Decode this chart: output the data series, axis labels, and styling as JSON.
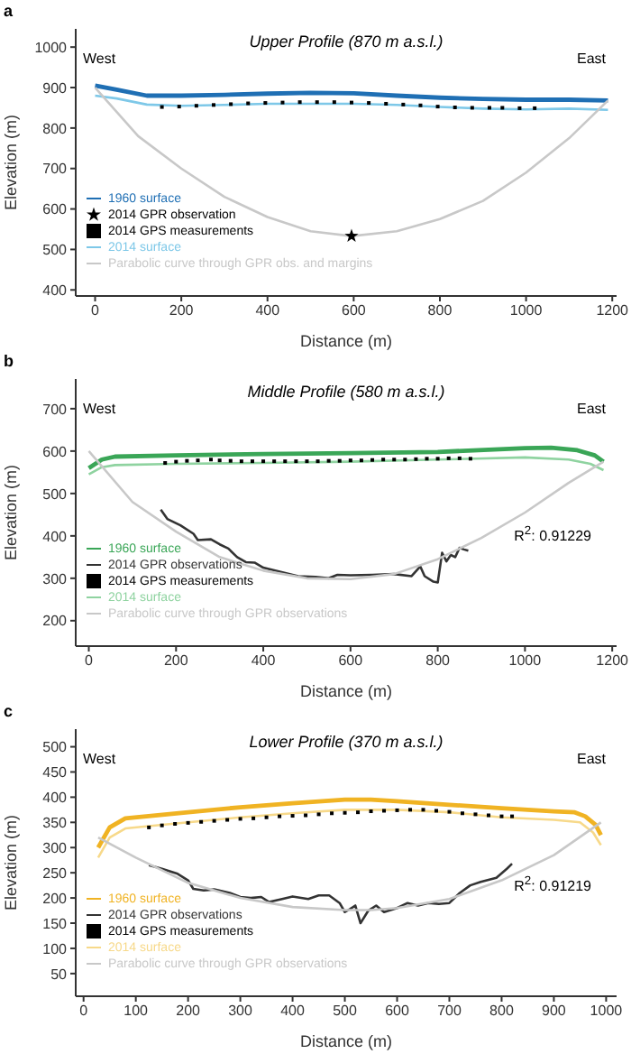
{
  "chart_data": [
    {
      "type": "line",
      "title": "Upper Profile (870 m a.s.l.)",
      "xlabel": "Distance (m)",
      "ylabel": "Elevation (m)",
      "annotations": [
        "a",
        "West",
        "East"
      ],
      "xlim": [
        -45,
        1210
      ],
      "ylim": [
        385,
        1045
      ],
      "xticks": [
        0,
        200,
        400,
        600,
        800,
        1000,
        1200
      ],
      "yticks": [
        400,
        500,
        600,
        700,
        800,
        900,
        1000
      ],
      "legend": "bottom left",
      "series": [
        {
          "name": "1960 surface",
          "type": "line",
          "color": "#1f6fb4",
          "marker": "none",
          "x": [
            0,
            50,
            120,
            200,
            300,
            400,
            500,
            600,
            700,
            800,
            900,
            1000,
            1100,
            1190
          ],
          "values": [
            905,
            895,
            880,
            880,
            882,
            885,
            887,
            886,
            880,
            875,
            872,
            870,
            870,
            868
          ]
        },
        {
          "name": "2014 surface",
          "type": "line",
          "color": "#7ec8e8",
          "marker": "none",
          "x": [
            0,
            50,
            120,
            200,
            300,
            400,
            500,
            600,
            700,
            800,
            900,
            1000,
            1100,
            1190
          ],
          "values": [
            880,
            873,
            858,
            855,
            857,
            860,
            860,
            860,
            857,
            852,
            848,
            846,
            848,
            845
          ]
        },
        {
          "name": "2014 GPS measurements",
          "type": "scatter",
          "color": "#000000",
          "marker": "square",
          "x": [
            155,
            195,
            235,
            275,
            315,
            355,
            395,
            435,
            475,
            515,
            555,
            595,
            635,
            675,
            715,
            755,
            795,
            835,
            875,
            915,
            945,
            985,
            1020
          ],
          "values": [
            852,
            853,
            855,
            857,
            859,
            861,
            862,
            863,
            864,
            864,
            864,
            863,
            862,
            860,
            858,
            856,
            853,
            851,
            850,
            850,
            850,
            849,
            849
          ]
        },
        {
          "name": "2014 GPR observation",
          "type": "scatter",
          "color": "#000000",
          "marker": "star",
          "x": [
            595
          ],
          "values": [
            533
          ]
        },
        {
          "name": "Parabolic curve through GPR obs. and margins",
          "type": "line",
          "color": "#c8c8c8",
          "marker": "none",
          "x": [
            0,
            100,
            200,
            300,
            400,
            500,
            595,
            700,
            800,
            900,
            1000,
            1100,
            1190
          ],
          "values": [
            900,
            780,
            700,
            630,
            580,
            545,
            533,
            545,
            575,
            620,
            690,
            775,
            868
          ]
        }
      ]
    },
    {
      "type": "line",
      "title": "Middle Profile (580 m a.s.l.)",
      "xlabel": "Distance (m)",
      "ylabel": "Elevation (m)",
      "annotations": [
        "b",
        "West",
        "East",
        "R$^{2}$: 0.91229"
      ],
      "xlim": [
        -30,
        1210
      ],
      "ylim": [
        140,
        770
      ],
      "xticks": [
        0,
        200,
        400,
        600,
        800,
        1000,
        1200
      ],
      "yticks": [
        200,
        300,
        400,
        500,
        600,
        700
      ],
      "legend": "bottom left",
      "series": [
        {
          "name": "1960 surface",
          "type": "line",
          "color": "#3aa657",
          "marker": "none",
          "x": [
            0,
            30,
            60,
            200,
            400,
            600,
            800,
            1000,
            1060,
            1120,
            1160,
            1180
          ],
          "values": [
            560,
            580,
            587,
            590,
            593,
            595,
            598,
            607,
            608,
            602,
            590,
            575
          ]
        },
        {
          "name": "2014 surface",
          "type": "line",
          "color": "#8fd3a0",
          "marker": "none",
          "x": [
            0,
            30,
            60,
            200,
            400,
            600,
            800,
            1000,
            1100,
            1150,
            1180
          ],
          "values": [
            545,
            562,
            567,
            570,
            572,
            575,
            580,
            585,
            580,
            570,
            555
          ]
        },
        {
          "name": "2014 GPS measurements",
          "type": "scatter",
          "color": "#000000",
          "marker": "square",
          "x": [
            175,
            200,
            225,
            250,
            280,
            300,
            325,
            350,
            375,
            400,
            425,
            450,
            475,
            500,
            525,
            550,
            575,
            600,
            625,
            650,
            675,
            700,
            725,
            750,
            775,
            800,
            825,
            850,
            875
          ],
          "values": [
            572,
            575,
            577,
            578,
            580,
            578,
            577,
            576,
            576,
            576,
            576,
            576,
            576,
            576,
            576,
            577,
            577,
            578,
            578,
            579,
            580,
            580,
            580,
            581,
            582,
            582,
            583,
            583,
            582
          ]
        },
        {
          "name": "2014 GPR observations",
          "type": "line",
          "color": "#333333",
          "marker": "none",
          "x": [
            165,
            180,
            210,
            240,
            250,
            280,
            300,
            320,
            340,
            360,
            380,
            400,
            440,
            480,
            520,
            550,
            570,
            600,
            650,
            700,
            740,
            760,
            770,
            790,
            800,
            810,
            820,
            830,
            840,
            850,
            860,
            870
          ],
          "values": [
            462,
            440,
            425,
            405,
            390,
            392,
            380,
            370,
            350,
            338,
            337,
            325,
            315,
            305,
            303,
            300,
            308,
            307,
            308,
            310,
            305,
            328,
            305,
            292,
            290,
            360,
            340,
            355,
            350,
            372,
            368,
            365
          ]
        },
        {
          "name": "Parabolic curve through GPR observations",
          "type": "line",
          "color": "#c8c8c8",
          "marker": "none",
          "x": [
            0,
            100,
            200,
            300,
            400,
            500,
            600,
            700,
            800,
            900,
            1000,
            1100,
            1180
          ],
          "values": [
            600,
            480,
            410,
            350,
            318,
            300,
            298,
            310,
            345,
            395,
            455,
            525,
            575
          ]
        }
      ]
    },
    {
      "type": "line",
      "title": "Lower Profile (370 m a.s.l.)",
      "xlabel": "Distance (m)",
      "ylabel": "Elevation (m)",
      "annotations": [
        "c",
        "West",
        "East",
        "R$^{2}$: 0.91219"
      ],
      "xlim": [
        -15,
        1020
      ],
      "ylim": [
        5,
        535
      ],
      "xticks": [
        0,
        100,
        200,
        300,
        400,
        500,
        600,
        700,
        800,
        900,
        1000
      ],
      "yticks": [
        50,
        100,
        150,
        200,
        250,
        300,
        350,
        400,
        450,
        500
      ],
      "legend": "bottom left",
      "series": [
        {
          "name": "1960 surface",
          "type": "line",
          "color": "#f0b323",
          "marker": "none",
          "x": [
            28,
            50,
            80,
            120,
            200,
            300,
            400,
            500,
            550,
            600,
            700,
            800,
            900,
            940,
            960,
            980,
            990
          ],
          "values": [
            300,
            340,
            358,
            362,
            370,
            380,
            388,
            395,
            395,
            392,
            385,
            378,
            372,
            370,
            362,
            345,
            325
          ]
        },
        {
          "name": "2014 surface",
          "type": "line",
          "color": "#f7d98a",
          "marker": "none",
          "x": [
            28,
            50,
            80,
            120,
            200,
            300,
            400,
            500,
            600,
            700,
            800,
            900,
            950,
            975,
            990
          ],
          "values": [
            280,
            320,
            338,
            342,
            350,
            360,
            368,
            375,
            375,
            370,
            360,
            355,
            350,
            330,
            305
          ]
        },
        {
          "name": "2014 GPS measurements",
          "type": "scatter",
          "color": "#000000",
          "marker": "square",
          "x": [
            125,
            150,
            175,
            200,
            225,
            250,
            275,
            300,
            325,
            350,
            375,
            400,
            425,
            450,
            475,
            500,
            525,
            550,
            575,
            600,
            625,
            650,
            675,
            700,
            725,
            750,
            775,
            800,
            820
          ],
          "values": [
            340,
            344,
            347,
            349,
            351,
            353,
            355,
            357,
            358,
            360,
            362,
            363,
            364,
            366,
            368,
            369,
            370,
            372,
            373,
            374,
            375,
            375,
            373,
            371,
            368,
            366,
            364,
            362,
            362
          ]
        },
        {
          "name": "2014 GPR observations",
          "type": "line",
          "color": "#333333",
          "marker": "none",
          "x": [
            125,
            150,
            180,
            200,
            210,
            230,
            250,
            280,
            300,
            320,
            340,
            355,
            380,
            400,
            430,
            450,
            470,
            490,
            500,
            510,
            520,
            530,
            545,
            560,
            575,
            600,
            620,
            640,
            660,
            680,
            700,
            720,
            740,
            760,
            790,
            810,
            820
          ],
          "values": [
            265,
            258,
            248,
            235,
            218,
            215,
            217,
            210,
            202,
            200,
            202,
            192,
            198,
            203,
            198,
            205,
            205,
            190,
            172,
            178,
            185,
            150,
            175,
            185,
            172,
            180,
            190,
            185,
            190,
            188,
            190,
            210,
            225,
            232,
            240,
            258,
            268
          ]
        },
        {
          "name": "Parabolic curve through GPR observations",
          "type": "line",
          "color": "#c8c8c8",
          "marker": "none",
          "x": [
            28,
            100,
            200,
            300,
            400,
            500,
            550,
            600,
            700,
            800,
            900,
            990
          ],
          "values": [
            320,
            280,
            230,
            200,
            182,
            176,
            176,
            180,
            198,
            235,
            285,
            350
          ]
        }
      ]
    }
  ]
}
